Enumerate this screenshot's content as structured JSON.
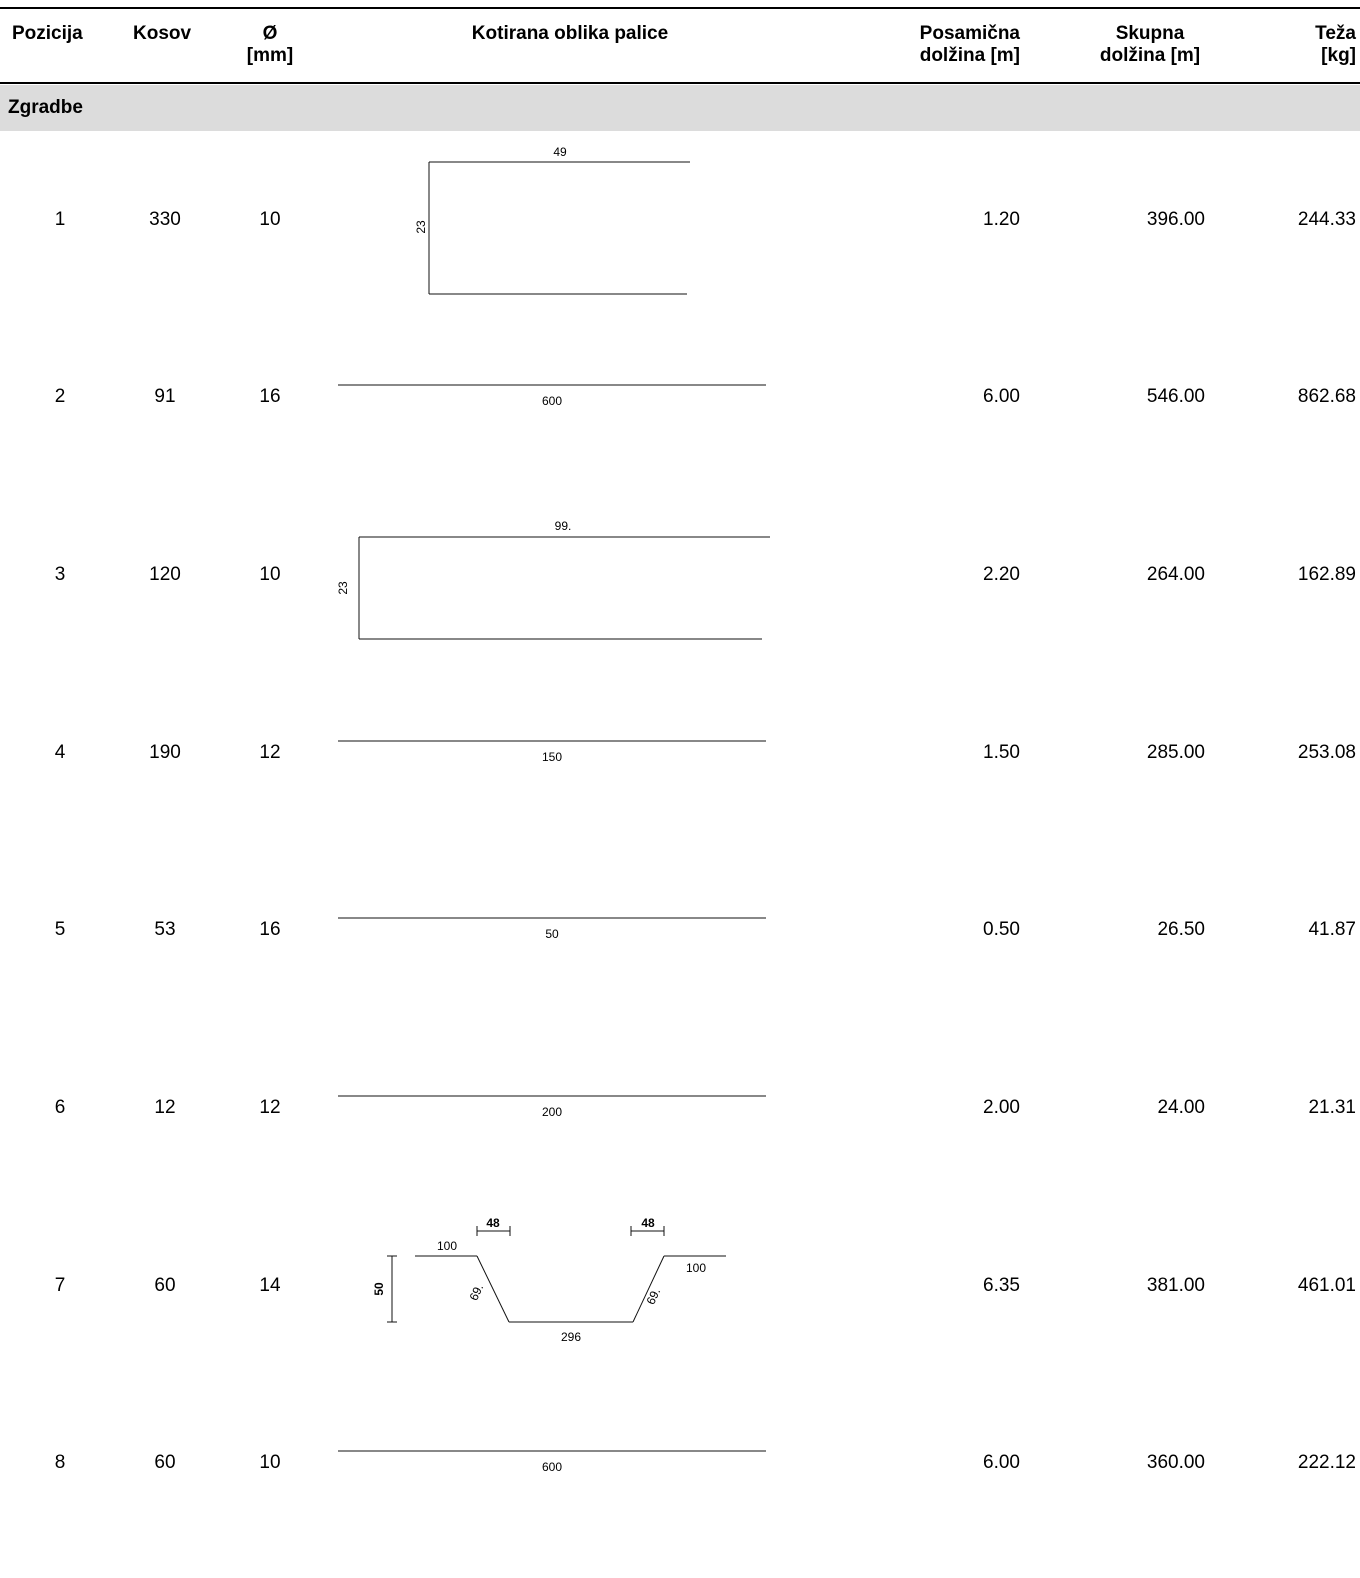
{
  "headers": {
    "pozicija": "Pozicija",
    "kosov": "Kosov",
    "diameter_line1": "Ø",
    "diameter_line2": "[mm]",
    "shape": "Kotirana oblika palice",
    "posamicna_line1": "Posamična",
    "posamicna_line2": "dolžina [m]",
    "skupna_line1": "Skupna",
    "skupna_line2": "dolžina [m]",
    "teza_line1": "Teža",
    "teza_line2": "[kg]"
  },
  "section_title": "Zgradbe",
  "rows": [
    {
      "pozicija": "1",
      "kosov": "330",
      "diameter": "10",
      "posamicna": "1.20",
      "skupna": "396.00",
      "teza": "244.33",
      "shape": {
        "kind": "u-open",
        "top_label": "49",
        "side_label": "23"
      }
    },
    {
      "pozicija": "2",
      "kosov": "91",
      "diameter": "16",
      "posamicna": "6.00",
      "skupna": "546.00",
      "teza": "862.68",
      "shape": {
        "kind": "straight",
        "label": "600"
      }
    },
    {
      "pozicija": "3",
      "kosov": "120",
      "diameter": "10",
      "posamicna": "2.20",
      "skupna": "264.00",
      "teza": "162.89",
      "shape": {
        "kind": "u-open",
        "top_label": "99.",
        "side_label": "23"
      }
    },
    {
      "pozicija": "4",
      "kosov": "190",
      "diameter": "12",
      "posamicna": "1.50",
      "skupna": "285.00",
      "teza": "253.08",
      "shape": {
        "kind": "straight",
        "label": "150"
      }
    },
    {
      "pozicija": "5",
      "kosov": "53",
      "diameter": "16",
      "posamicna": "0.50",
      "skupna": "26.50",
      "teza": "41.87",
      "shape": {
        "kind": "straight",
        "label": "50"
      }
    },
    {
      "pozicija": "6",
      "kosov": "12",
      "diameter": "12",
      "posamicna": "2.00",
      "skupna": "24.00",
      "teza": "21.31",
      "shape": {
        "kind": "straight",
        "label": "200"
      }
    },
    {
      "pozicija": "7",
      "kosov": "60",
      "diameter": "14",
      "posamicna": "6.35",
      "skupna": "381.00",
      "teza": "461.01",
      "shape": {
        "kind": "hat",
        "left_flange": "100",
        "right_flange": "100",
        "left_slope": "69.",
        "right_slope": "69.",
        "bottom": "296",
        "height": "50",
        "left_offset": "48",
        "right_offset": "48"
      }
    },
    {
      "pozicija": "8",
      "kosov": "60",
      "diameter": "10",
      "posamicna": "6.00",
      "skupna": "360.00",
      "teza": "222.12",
      "shape": {
        "kind": "straight",
        "label": "600"
      }
    }
  ]
}
